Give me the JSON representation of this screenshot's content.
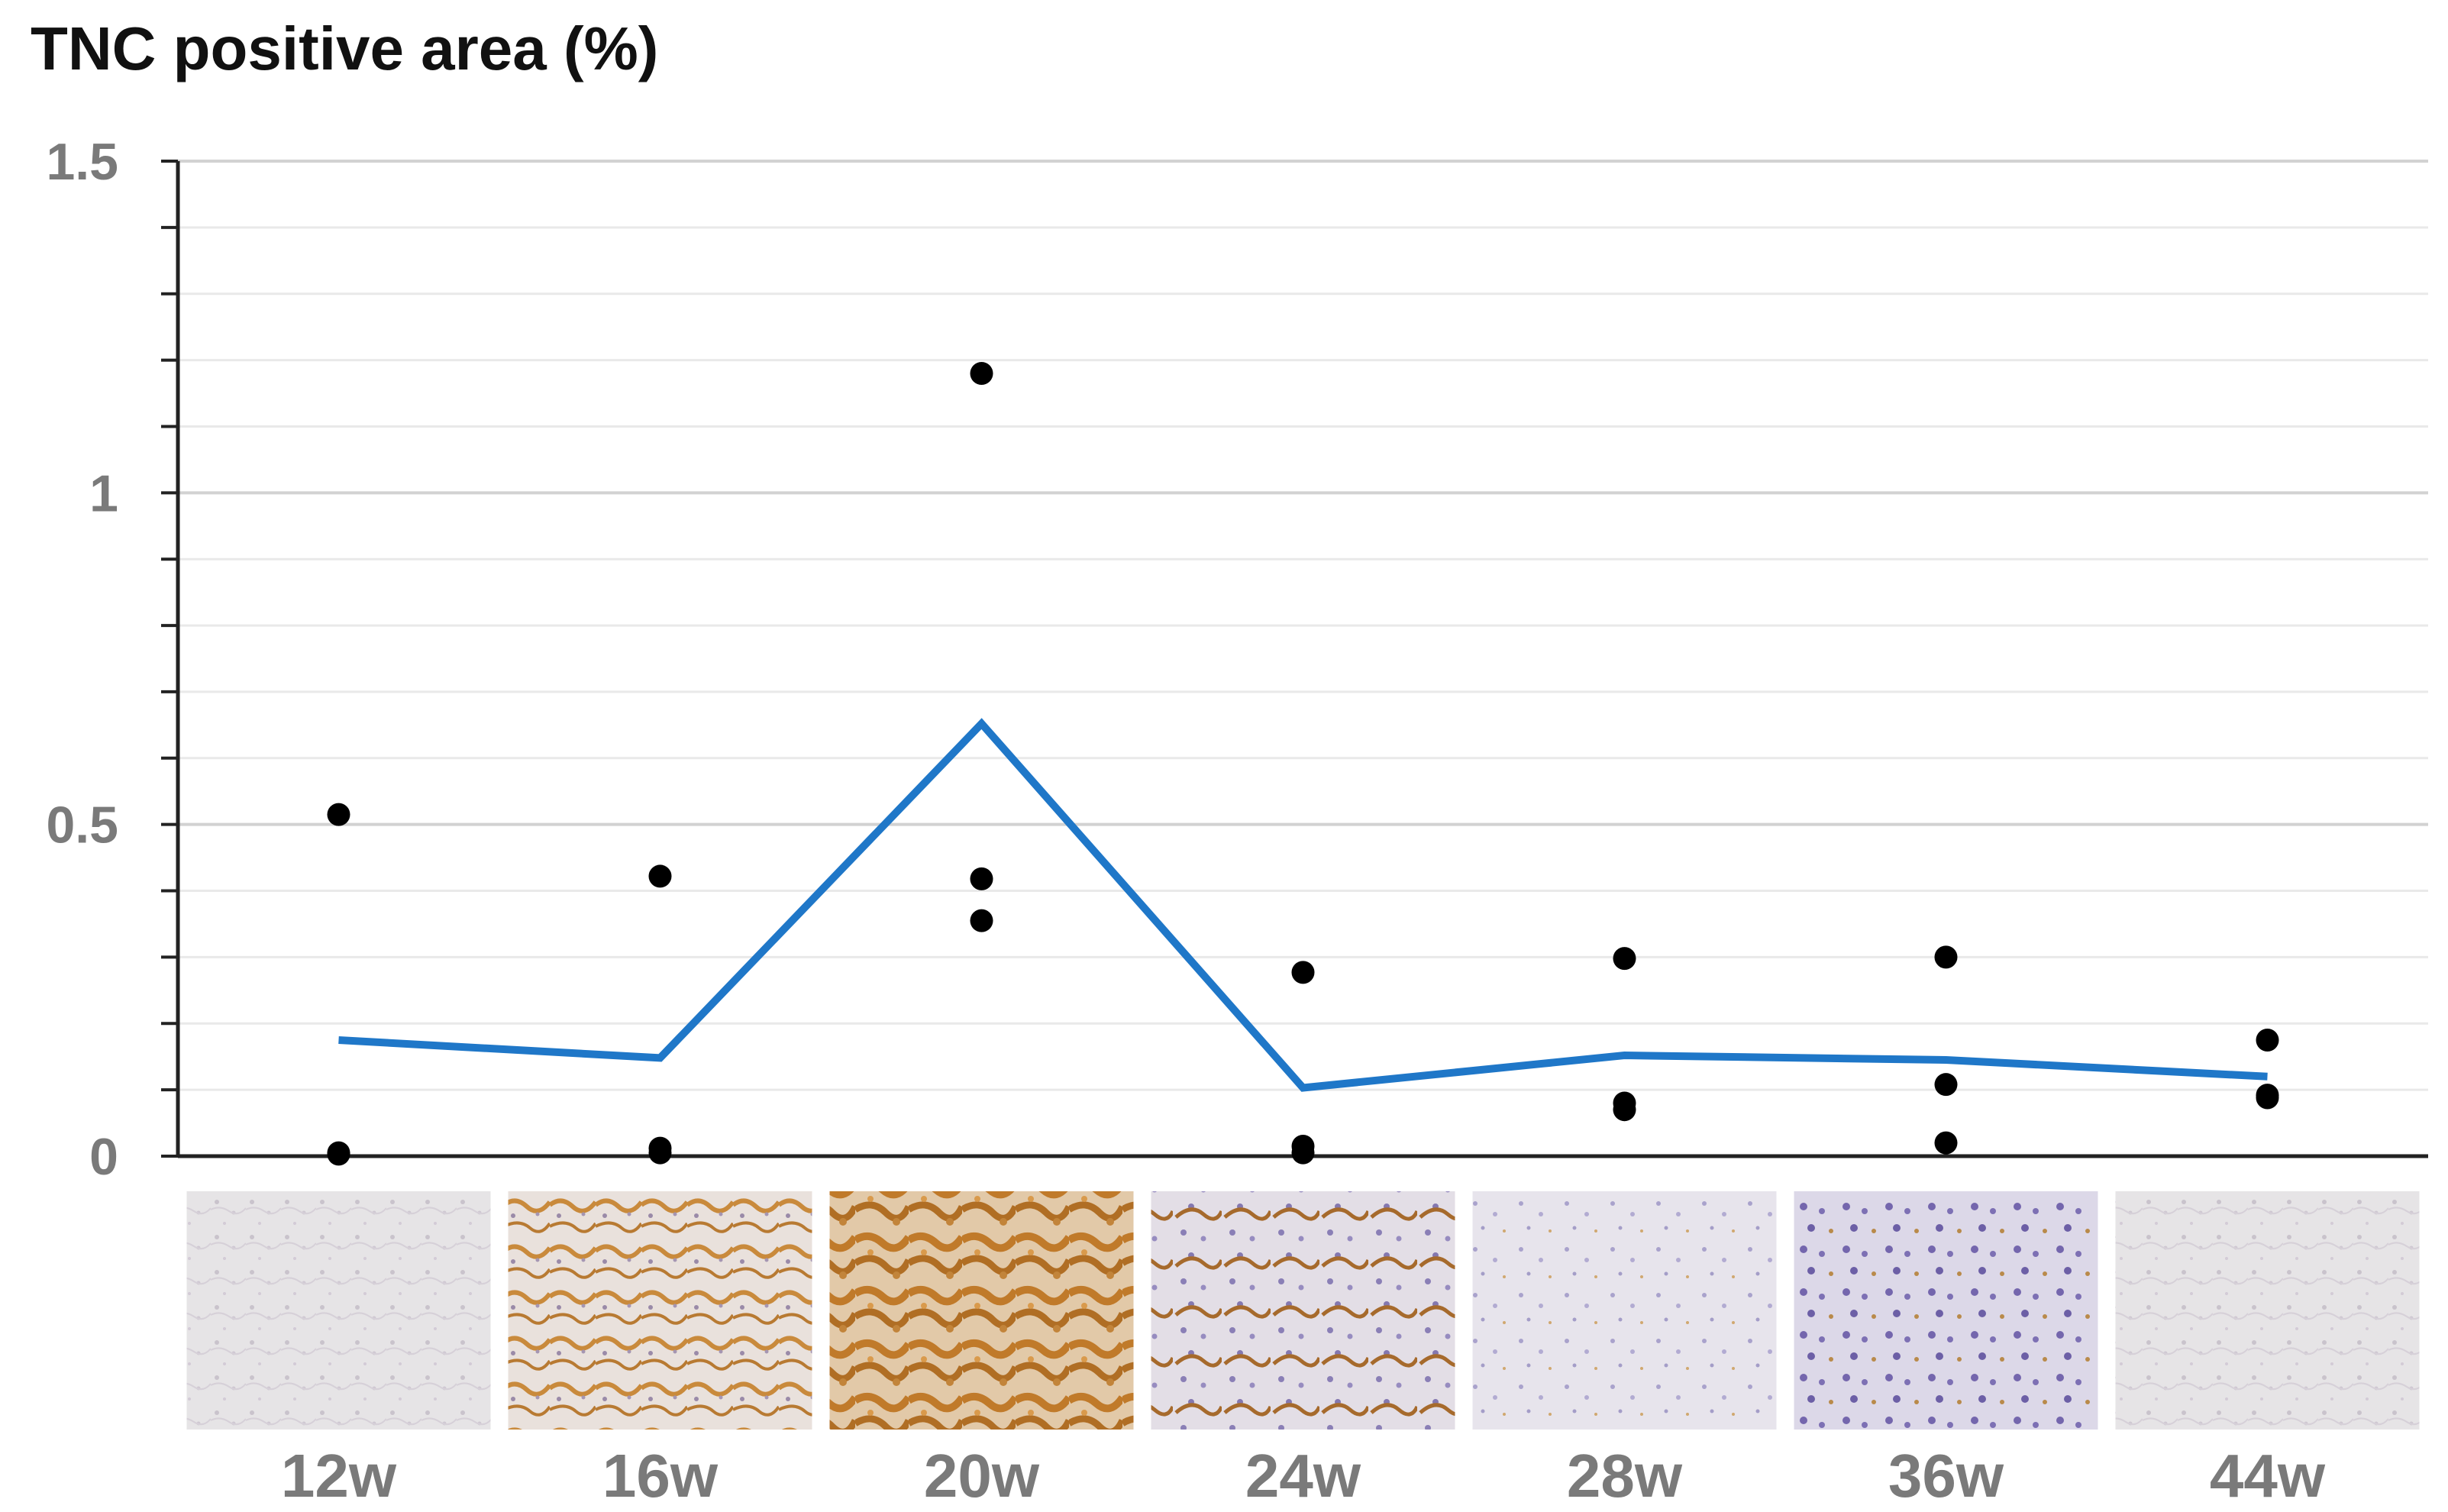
{
  "chart_data": {
    "type": "line",
    "title": "",
    "ylabel": "TNC positive area (%)",
    "xlabel": "",
    "ylim": [
      0,
      1.5
    ],
    "y_ticks": [
      "0",
      "0.5",
      "1",
      "1.5"
    ],
    "grid": true,
    "categories": [
      "12w",
      "16w",
      "20w",
      "24w",
      "28w",
      "36w",
      "44w"
    ],
    "series": [
      {
        "kind": "line",
        "color": "#1f77c8",
        "values": [
          0.175,
          0.148,
          0.652,
          0.103,
          0.152,
          0.145,
          0.12
        ]
      }
    ],
    "points": [
      [
        0.515,
        0.005,
        0.003
      ],
      [
        0.422,
        0.012,
        0.005
      ],
      [
        1.18,
        0.418,
        0.355
      ],
      [
        0.277,
        0.015,
        0.005
      ],
      [
        0.298,
        0.08,
        0.07
      ],
      [
        0.3,
        0.108,
        0.02
      ],
      [
        0.175,
        0.092,
        0.088
      ]
    ],
    "point_color": "#000000",
    "image_panels": [
      {
        "name": "histology-12w",
        "stain": "faint"
      },
      {
        "name": "histology-16w",
        "stain": "moderate"
      },
      {
        "name": "histology-20w",
        "stain": "strong"
      },
      {
        "name": "histology-24w",
        "stain": "moderate-blue"
      },
      {
        "name": "histology-28w",
        "stain": "light-blue"
      },
      {
        "name": "histology-36w",
        "stain": "blue"
      },
      {
        "name": "histology-44w",
        "stain": "faint"
      }
    ]
  }
}
